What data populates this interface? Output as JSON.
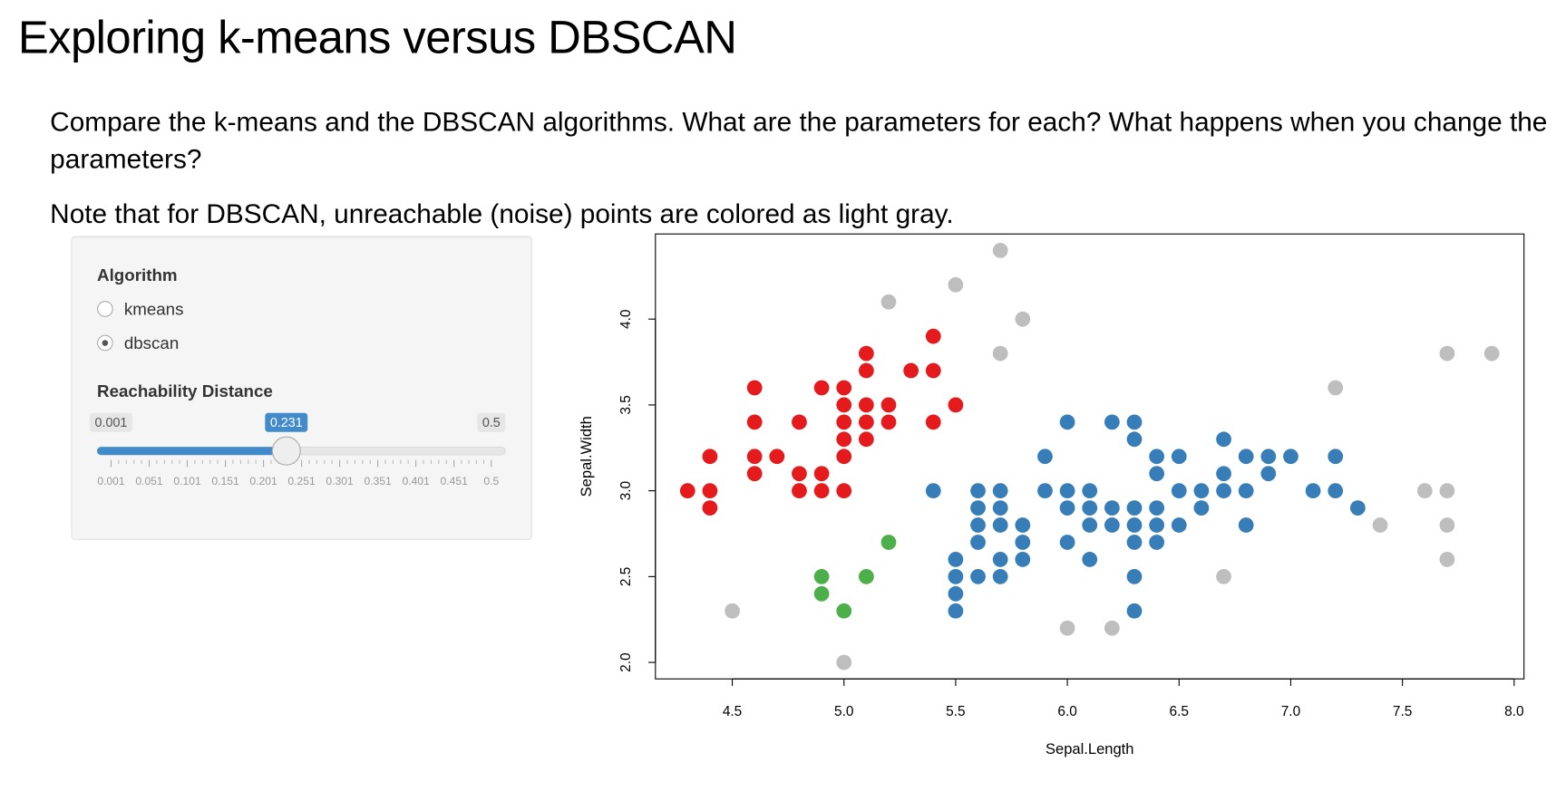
{
  "header": {
    "title": "Exploring k-means versus DBSCAN"
  },
  "paragraphs": [
    "Compare the k-means and the DBSCAN algorithms. What are the parameters for each? What happens when you change the parameters?",
    "Note that for DBSCAN, unreachable (noise) points are colored as light gray."
  ],
  "sidebar": {
    "algorithm": {
      "label": "Algorithm",
      "options": [
        "kmeans",
        "dbscan"
      ],
      "selected": "dbscan"
    },
    "slider": {
      "label": "Reachability Distance",
      "min": 0.001,
      "max": 0.5,
      "value": 0.231,
      "ticks": [
        0.001,
        0.051,
        0.101,
        0.151,
        0.201,
        0.251,
        0.301,
        0.351,
        0.401,
        0.451,
        0.5
      ]
    }
  },
  "chart_data": {
    "type": "scatter",
    "xlabel": "Sepal.Length",
    "ylabel": "Sepal.Width",
    "xlim": [
      4.156,
      8.044
    ],
    "ylim": [
      1.904,
      4.496
    ],
    "xticks": [
      4.5,
      {
        "value": 5,
        "label": "5.0"
      },
      5.5,
      {
        "value": 6,
        "label": "6.0"
      },
      6.5,
      {
        "value": 7,
        "label": "7.0"
      },
      7.5,
      {
        "value": 8,
        "label": "8.0"
      }
    ],
    "yticks": [
      {
        "value": 2,
        "label": "2.0"
      },
      2.5,
      {
        "value": 3,
        "label": "3.0"
      },
      3.5,
      {
        "value": 4,
        "label": "4.0"
      }
    ],
    "series": [
      {
        "color": "#e41a1c",
        "x": [
          4.3,
          4.4,
          4.4,
          4.4,
          4.6,
          4.6,
          4.6,
          4.6,
          4.7,
          4.8,
          4.8,
          4.8,
          4.9,
          4.9,
          4.9,
          5.0,
          5.0,
          5.0,
          5.0,
          5.0,
          5.0,
          5.1,
          5.1,
          5.1,
          5.1,
          5.1,
          5.2,
          5.2,
          5.3,
          5.4,
          5.4,
          5.4,
          5.5
        ],
        "values": [
          3.0,
          3.0,
          2.9,
          3.2,
          3.6,
          3.4,
          3.2,
          3.1,
          3.2,
          3.4,
          3.1,
          3.0,
          3.6,
          3.1,
          3.0,
          3.6,
          3.5,
          3.4,
          3.3,
          3.2,
          3.0,
          3.8,
          3.7,
          3.5,
          3.4,
          3.3,
          3.5,
          3.4,
          3.7,
          3.9,
          3.7,
          3.4,
          3.5
        ]
      },
      {
        "color": "#4daf4a",
        "x": [
          4.9,
          4.9,
          5.0,
          5.1,
          5.2
        ],
        "values": [
          2.5,
          2.4,
          2.3,
          2.5,
          2.7
        ]
      },
      {
        "color": "#377eb8",
        "x": [
          5.4,
          5.5,
          5.5,
          5.5,
          5.5,
          5.6,
          5.6,
          5.6,
          5.6,
          5.6,
          5.7,
          5.7,
          5.7,
          5.7,
          5.7,
          5.8,
          5.8,
          5.8,
          5.9,
          5.9,
          6.0,
          6.0,
          6.0,
          6.0,
          6.1,
          6.1,
          6.1,
          6.1,
          6.2,
          6.2,
          6.2,
          6.3,
          6.3,
          6.3,
          6.3,
          6.3,
          6.3,
          6.3,
          6.4,
          6.4,
          6.4,
          6.4,
          6.4,
          6.5,
          6.5,
          6.5,
          6.6,
          6.6,
          6.7,
          6.7,
          6.7,
          6.8,
          6.8,
          6.8,
          6.9,
          6.9,
          7.0,
          7.1,
          7.2,
          7.2,
          7.3
        ],
        "values": [
          3.0,
          2.6,
          2.5,
          2.4,
          2.3,
          3.0,
          2.9,
          2.8,
          2.7,
          2.5,
          3.0,
          2.9,
          2.8,
          2.6,
          2.5,
          2.8,
          2.7,
          2.6,
          3.2,
          3.0,
          3.4,
          3.0,
          2.9,
          2.7,
          3.0,
          2.9,
          2.8,
          2.6,
          3.4,
          2.9,
          2.8,
          3.4,
          3.3,
          2.9,
          2.8,
          2.7,
          2.5,
          2.3,
          3.2,
          3.1,
          2.9,
          2.8,
          2.7,
          3.2,
          3.0,
          2.8,
          3.0,
          2.9,
          3.3,
          3.1,
          3.0,
          3.2,
          3.0,
          2.8,
          3.2,
          3.1,
          3.2,
          3.0,
          3.2,
          3.0,
          2.9
        ]
      },
      {
        "color": "#bebebe",
        "x": [
          4.5,
          5.0,
          5.2,
          5.5,
          5.7,
          5.7,
          5.8,
          6.0,
          6.2,
          6.7,
          7.2,
          7.4,
          7.6,
          7.7,
          7.7,
          7.7,
          7.7,
          7.9
        ],
        "values": [
          2.3,
          2.0,
          4.1,
          4.2,
          4.4,
          3.8,
          4.0,
          2.2,
          2.2,
          2.5,
          3.6,
          2.8,
          3.0,
          3.8,
          3.0,
          2.8,
          2.6,
          3.8
        ]
      }
    ]
  }
}
